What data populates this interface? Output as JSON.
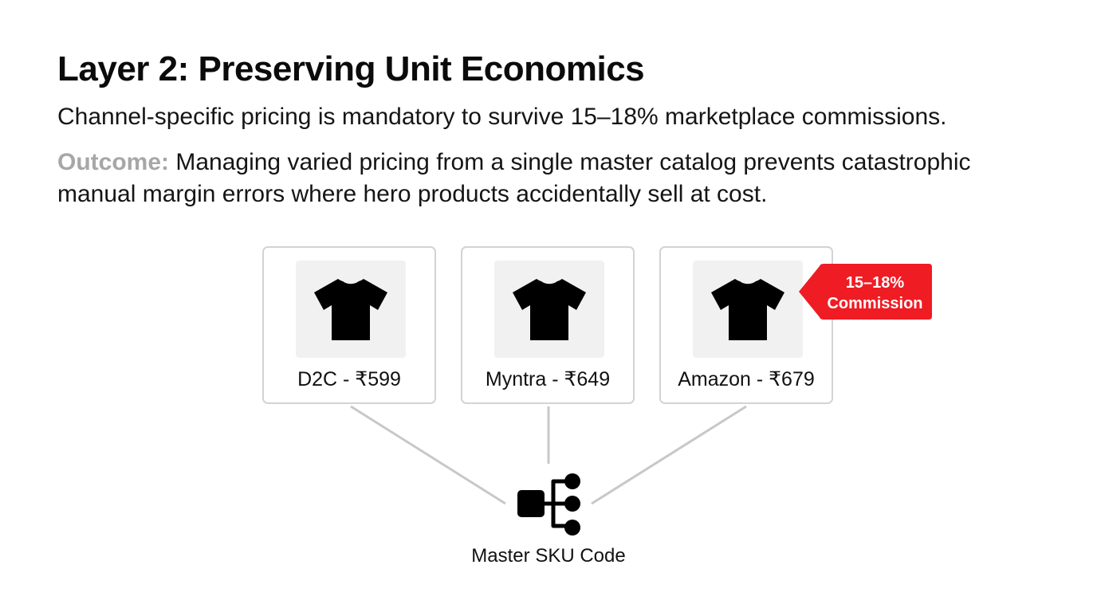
{
  "slide": {
    "title": "Layer 2: Preserving Unit Economics",
    "subtitle": "Channel-specific pricing is mandatory to survive 15–18% marketplace commissions.",
    "outcome_label": "Outcome:",
    "outcome_text": " Managing varied pricing from a single master catalog prevents catastrophic manual margin errors where hero products accidentally sell at cost."
  },
  "channels": [
    {
      "label": "D2C - ₹599",
      "icon": "tshirt-icon"
    },
    {
      "label": "Myntra - ₹649",
      "icon": "tshirt-icon"
    },
    {
      "label": "Amazon - ₹679",
      "icon": "tshirt-icon"
    }
  ],
  "badge": {
    "line1": "15–18%",
    "line2": "Commission",
    "color": "#ef1c24"
  },
  "hub": {
    "label": "Master SKU Code",
    "icon": "hierarchy-icon"
  },
  "colors": {
    "connector": "#c8c8c8",
    "card_border": "#d3d3d3",
    "image_bg": "#f1f1f1",
    "outcome_label": "#a7a7a7"
  }
}
